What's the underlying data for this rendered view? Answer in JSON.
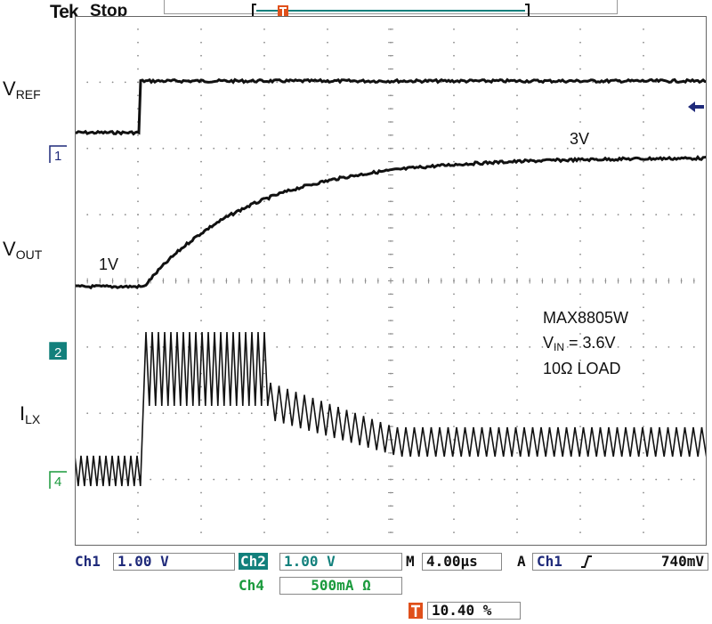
{
  "header": {
    "brand": "Tek",
    "status": "Stop"
  },
  "colors": {
    "ch1": "#1f2a7a",
    "ch2": "#12807c",
    "ch4": "#1a9a3c",
    "trigger": "#e0501b",
    "trace": "#111111",
    "grid": "#8a8a8a"
  },
  "labels": {
    "vref": {
      "main": "V",
      "sub": "REF"
    },
    "vout": {
      "main": "V",
      "sub": "OUT"
    },
    "ilx": {
      "main": "I",
      "sub": "LX"
    },
    "level_start": "1V",
    "level_end": "3V",
    "part": "MAX8805W",
    "vin": {
      "main": "V",
      "sub": "IN",
      "rest": " = 3.6V"
    },
    "load": "10Ω LOAD"
  },
  "channel_markers": {
    "ch1": "1",
    "ch2": "2",
    "ch4": "4"
  },
  "trigger": {
    "icon": "trigger-T-icon"
  },
  "bottom": {
    "ch1_name": "Ch1",
    "ch1_scale": "1.00 V",
    "ch2_name": "Ch2",
    "ch2_scale": "1.00 V",
    "timebase_label": "M",
    "timebase": "4.00µs",
    "acq_label": "A",
    "trig_source": "Ch1",
    "trig_level": "740mV",
    "ch4_name": "Ch4",
    "ch4_scale": "500mA Ω",
    "trigger_position": "10.40 %"
  }
}
